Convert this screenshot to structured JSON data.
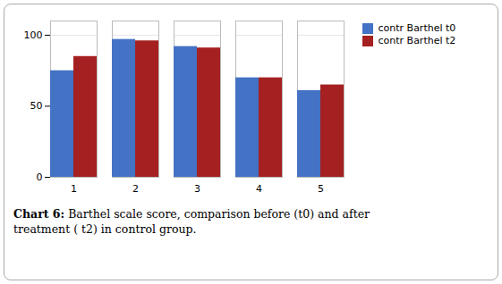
{
  "chart_data": {
    "type": "bar",
    "caption": "Chart 6: Barthel scale score, comparison before (t0) and after\ntreatment ( t2) in control group.",
    "categories": [
      1,
      2,
      3,
      4,
      5
    ],
    "series": [
      {
        "name": "contr Barthel t0",
        "color": "#4472C4",
        "values": [
          75,
          97,
          92,
          70,
          61
        ]
      },
      {
        "name": "contr Barthel t2",
        "color": "#A52020",
        "values": [
          85,
          96,
          91,
          70,
          65
        ]
      }
    ],
    "ylim": [
      0,
      110
    ],
    "yticks": [
      0,
      50,
      100
    ],
    "grid": true,
    "legend": "right"
  }
}
